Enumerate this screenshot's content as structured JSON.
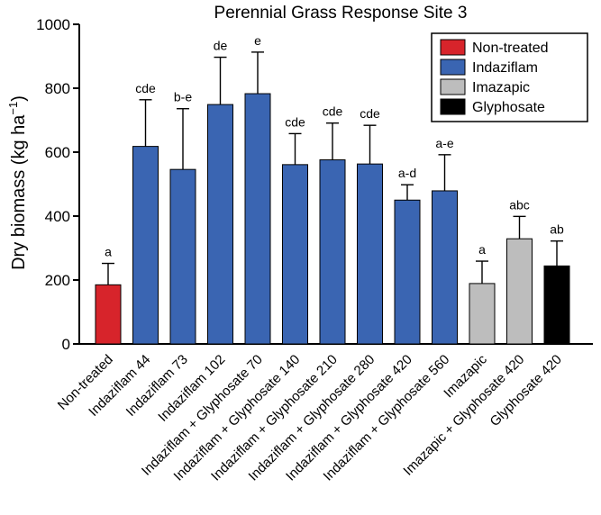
{
  "chart_data": {
    "type": "bar",
    "title": "Perennial Grass Response Site 3",
    "xlabel": "",
    "ylabel_main": "Dry biomass (kg ha",
    "ylabel_sup": "−1",
    "ylabel_close": ")",
    "ylim": [
      0,
      1000
    ],
    "yticks": [
      0,
      200,
      400,
      600,
      800,
      1000
    ],
    "categories": [
      "Non-treated",
      "Indaziflam 44",
      "Indaziflam 73",
      "Indaziflam 102",
      "Indaziflam + Glyphosate 70",
      "Indaziflam + Glyphosate 140",
      "Indaziflam + Glyphosate 210",
      "Indaziflam + Glyphosate 280",
      "Indaziflam + Glyphosate 420",
      "Indaziflam + Glyphosate 560",
      "Imazapic",
      "Imazapic + Glyphosate 420",
      "Glyphosate 420"
    ],
    "values": [
      185,
      618,
      546,
      749,
      783,
      561,
      576,
      563,
      450,
      479,
      189,
      329,
      244
    ],
    "errors": [
      67,
      146,
      190,
      148,
      130,
      97,
      115,
      121,
      48,
      113,
      70,
      70,
      78
    ],
    "letters": [
      "a",
      "cde",
      "b-e",
      "de",
      "e",
      "cde",
      "cde",
      "cde",
      "a-d",
      "a-e",
      "a",
      "abc",
      "ab"
    ],
    "groups": [
      "Non-treated",
      "Indaziflam",
      "Indaziflam",
      "Indaziflam",
      "Indaziflam",
      "Indaziflam",
      "Indaziflam",
      "Indaziflam",
      "Indaziflam",
      "Indaziflam",
      "Imazapic",
      "Imazapic",
      "Glyphosate"
    ],
    "legend": [
      {
        "name": "Non-treated",
        "color": "#d7242b"
      },
      {
        "name": "Indaziflam",
        "color": "#3a65b2"
      },
      {
        "name": "Imazapic",
        "color": "#bdbdbd"
      },
      {
        "name": "Glyphosate",
        "color": "#000000"
      }
    ],
    "legend_position": "top-right"
  }
}
